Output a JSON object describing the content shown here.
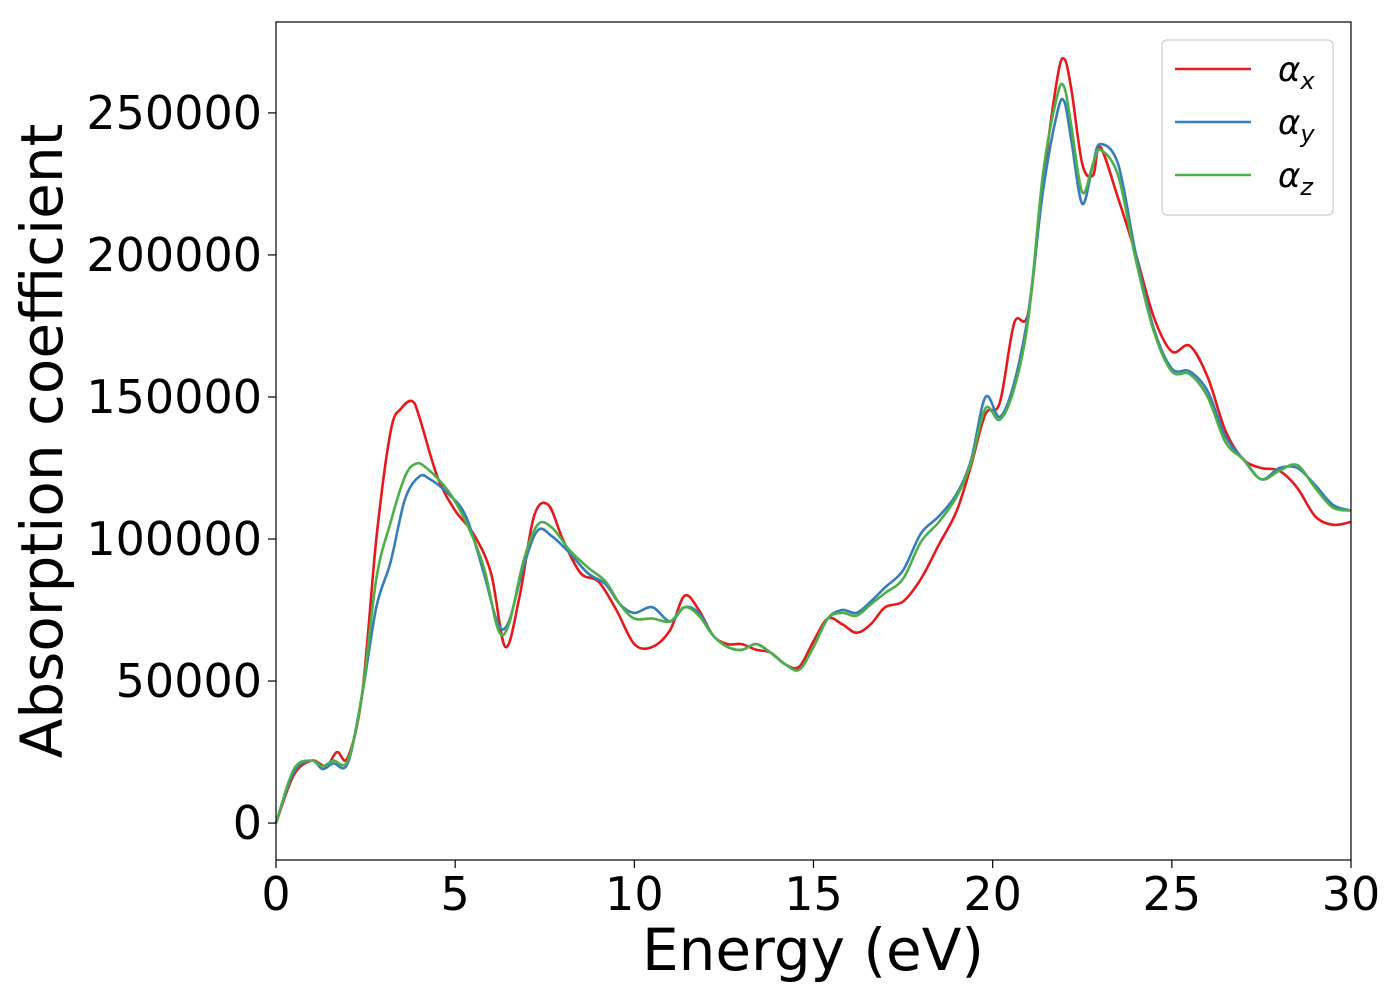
{
  "chart_data": {
    "type": "line",
    "title": "",
    "xlabel": "Energy (eV)",
    "ylabel": "Absorption coefficient",
    "xlim": [
      0,
      30
    ],
    "ylim": [
      -13000,
      282000
    ],
    "xticks": [
      0,
      5,
      10,
      15,
      20,
      25,
      30
    ],
    "xtick_labels": [
      "0",
      "5",
      "10",
      "15",
      "20",
      "25",
      "30"
    ],
    "yticks": [
      0,
      50000,
      100000,
      150000,
      200000,
      250000
    ],
    "ytick_labels": [
      "0",
      "50000",
      "100000",
      "150000",
      "200000",
      "250000"
    ],
    "grid": false,
    "legend_position": "top-right",
    "series": [
      {
        "name": "αx",
        "base": "α",
        "sub": "x",
        "color": "#e41a1c",
        "x": [
          0,
          0.5,
          1.0,
          1.4,
          1.7,
          2.0,
          2.4,
          2.8,
          3.2,
          3.5,
          3.8,
          4.0,
          4.5,
          5.0,
          5.5,
          6.0,
          6.4,
          6.8,
          7.2,
          7.6,
          8.0,
          8.5,
          9.0,
          9.5,
          10.0,
          10.5,
          11.0,
          11.4,
          11.8,
          12.2,
          12.6,
          13.0,
          13.4,
          13.8,
          14.2,
          14.6,
          15.0,
          15.4,
          15.8,
          16.2,
          16.6,
          17.0,
          17.5,
          18.0,
          18.5,
          19.0,
          19.4,
          19.8,
          20.2,
          20.6,
          21.0,
          21.4,
          21.8,
          22.0,
          22.2,
          22.5,
          22.8,
          23.0,
          23.5,
          24.0,
          24.5,
          25.0,
          25.5,
          26.0,
          26.5,
          27.0,
          27.5,
          28.0,
          28.5,
          29.0,
          29.5,
          30.0
        ],
        "y": [
          0,
          17000,
          22000,
          20000,
          25000,
          23000,
          45000,
          100000,
          138000,
          146000,
          148500,
          143000,
          122000,
          110000,
          102000,
          88000,
          62000,
          80000,
          108000,
          112000,
          100000,
          88000,
          85000,
          75000,
          63000,
          62000,
          68000,
          80000,
          75000,
          66000,
          63000,
          63000,
          61000,
          60000,
          56000,
          55000,
          64000,
          72000,
          70000,
          67000,
          70000,
          76000,
          78000,
          86000,
          98000,
          110000,
          126000,
          144000,
          148000,
          176000,
          180000,
          225000,
          262000,
          269000,
          258000,
          232000,
          228000,
          238000,
          220000,
          200000,
          178000,
          166000,
          168000,
          157000,
          138000,
          128000,
          125000,
          124000,
          118000,
          108000,
          105000,
          106000
        ]
      },
      {
        "name": "αy",
        "base": "α",
        "sub": "y",
        "color": "#377eb8",
        "x": [
          0,
          0.5,
          1.0,
          1.3,
          1.6,
          2.0,
          2.4,
          2.8,
          3.2,
          3.6,
          4.0,
          4.3,
          4.8,
          5.3,
          5.8,
          6.2,
          6.5,
          6.9,
          7.3,
          7.7,
          8.2,
          8.7,
          9.2,
          9.6,
          10.0,
          10.5,
          11.0,
          11.4,
          11.8,
          12.2,
          12.6,
          13.0,
          13.4,
          13.8,
          14.2,
          14.6,
          15.0,
          15.4,
          15.8,
          16.2,
          16.6,
          17.0,
          17.5,
          18.0,
          18.5,
          19.0,
          19.4,
          19.8,
          20.2,
          20.6,
          21.0,
          21.4,
          21.8,
          22.0,
          22.2,
          22.5,
          22.8,
          23.0,
          23.5,
          24.0,
          24.5,
          25.0,
          25.5,
          26.0,
          26.5,
          27.0,
          27.5,
          28.0,
          28.5,
          29.0,
          29.5,
          30.0
        ],
        "y": [
          0,
          18000,
          22000,
          19000,
          21000,
          21000,
          45000,
          76000,
          92000,
          114000,
          122000,
          121000,
          116000,
          108000,
          88000,
          70000,
          71000,
          90000,
          103000,
          101000,
          95000,
          88000,
          84000,
          77000,
          74000,
          76000,
          71000,
          76000,
          74000,
          66000,
          62000,
          61000,
          63000,
          60000,
          56000,
          54000,
          62000,
          72000,
          75000,
          74000,
          78000,
          83000,
          89000,
          102000,
          108000,
          116000,
          128000,
          150000,
          143000,
          155000,
          180000,
          222000,
          250000,
          254000,
          240000,
          218000,
          232000,
          239000,
          232000,
          200000,
          174000,
          160000,
          159000,
          152000,
          136000,
          128000,
          121000,
          125000,
          125000,
          119000,
          112000,
          110000
        ]
      },
      {
        "name": "αz",
        "base": "α",
        "sub": "z",
        "color": "#4daf4a",
        "x": [
          0,
          0.5,
          1.0,
          1.3,
          1.6,
          2.0,
          2.4,
          2.8,
          3.2,
          3.6,
          3.9,
          4.2,
          4.8,
          5.3,
          5.8,
          6.2,
          6.5,
          6.9,
          7.3,
          7.7,
          8.2,
          8.7,
          9.2,
          9.6,
          10.0,
          10.5,
          11.0,
          11.4,
          11.8,
          12.2,
          12.6,
          13.0,
          13.4,
          13.8,
          14.2,
          14.6,
          15.0,
          15.4,
          15.8,
          16.2,
          16.6,
          17.0,
          17.5,
          18.0,
          18.5,
          19.0,
          19.4,
          19.8,
          20.2,
          20.6,
          21.0,
          21.4,
          21.8,
          22.0,
          22.2,
          22.5,
          22.8,
          23.0,
          23.5,
          24.0,
          24.5,
          25.0,
          25.5,
          26.0,
          26.5,
          27.0,
          27.5,
          28.0,
          28.5,
          29.0,
          29.5,
          30.0
        ],
        "y": [
          0,
          19000,
          22000,
          20000,
          22000,
          22000,
          45000,
          86000,
          106000,
          122000,
          126500,
          125000,
          117000,
          106000,
          90000,
          68000,
          70000,
          92000,
          105000,
          104000,
          96000,
          90000,
          85000,
          77000,
          72000,
          72000,
          71000,
          76000,
          73000,
          66000,
          62000,
          61000,
          63000,
          60000,
          56000,
          54000,
          62000,
          72000,
          74000,
          73000,
          77000,
          81000,
          86000,
          99000,
          106000,
          115000,
          127000,
          146000,
          142000,
          153000,
          178000,
          228000,
          256000,
          259000,
          245000,
          222000,
          232000,
          237000,
          228000,
          198000,
          173000,
          159000,
          158000,
          150000,
          134000,
          128000,
          121000,
          124000,
          126000,
          118000,
          111000,
          110000
        ]
      }
    ]
  }
}
